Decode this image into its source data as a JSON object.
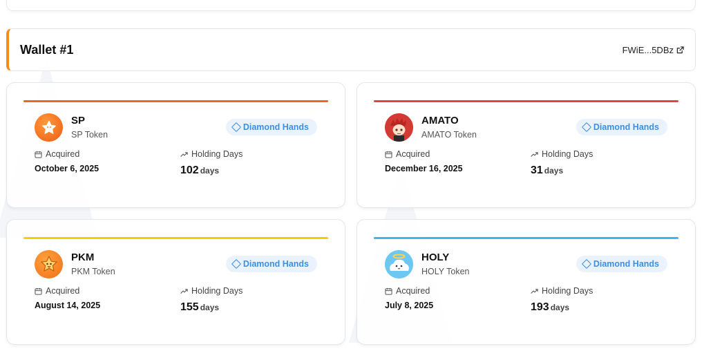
{
  "wallet": {
    "title": "Wallet #1",
    "address": "FWiE...5DBz",
    "accent_color": "#f28c1c"
  },
  "labels": {
    "acquired": "Acquired",
    "holding_days": "Holding Days",
    "days_unit": "days",
    "badge": "Diamond Hands"
  },
  "tokens": [
    {
      "symbol": "SP",
      "name": "SP Token",
      "acquired": "October 6, 2025",
      "days": "102",
      "bar_color": "#e8681c",
      "avatar_color": "#f5731c",
      "avatar_icon": "star-icon"
    },
    {
      "symbol": "AMATO",
      "name": "AMATO Token",
      "acquired": "December 16, 2025",
      "days": "31",
      "bar_color": "#e04545",
      "avatar_color": "#d63a3a",
      "avatar_icon": "character-icon"
    },
    {
      "symbol": "PKM",
      "name": "PKM Token",
      "acquired": "August 14, 2025",
      "days": "155",
      "bar_color": "#f5d000",
      "avatar_color": "#f58a1f",
      "avatar_icon": "star-face-icon"
    },
    {
      "symbol": "HOLY",
      "name": "HOLY Token",
      "acquired": "July 8, 2025",
      "days": "193",
      "bar_color": "#3fb5ec",
      "avatar_color": "#5ec2f0",
      "avatar_icon": "cloud-character-icon"
    }
  ]
}
